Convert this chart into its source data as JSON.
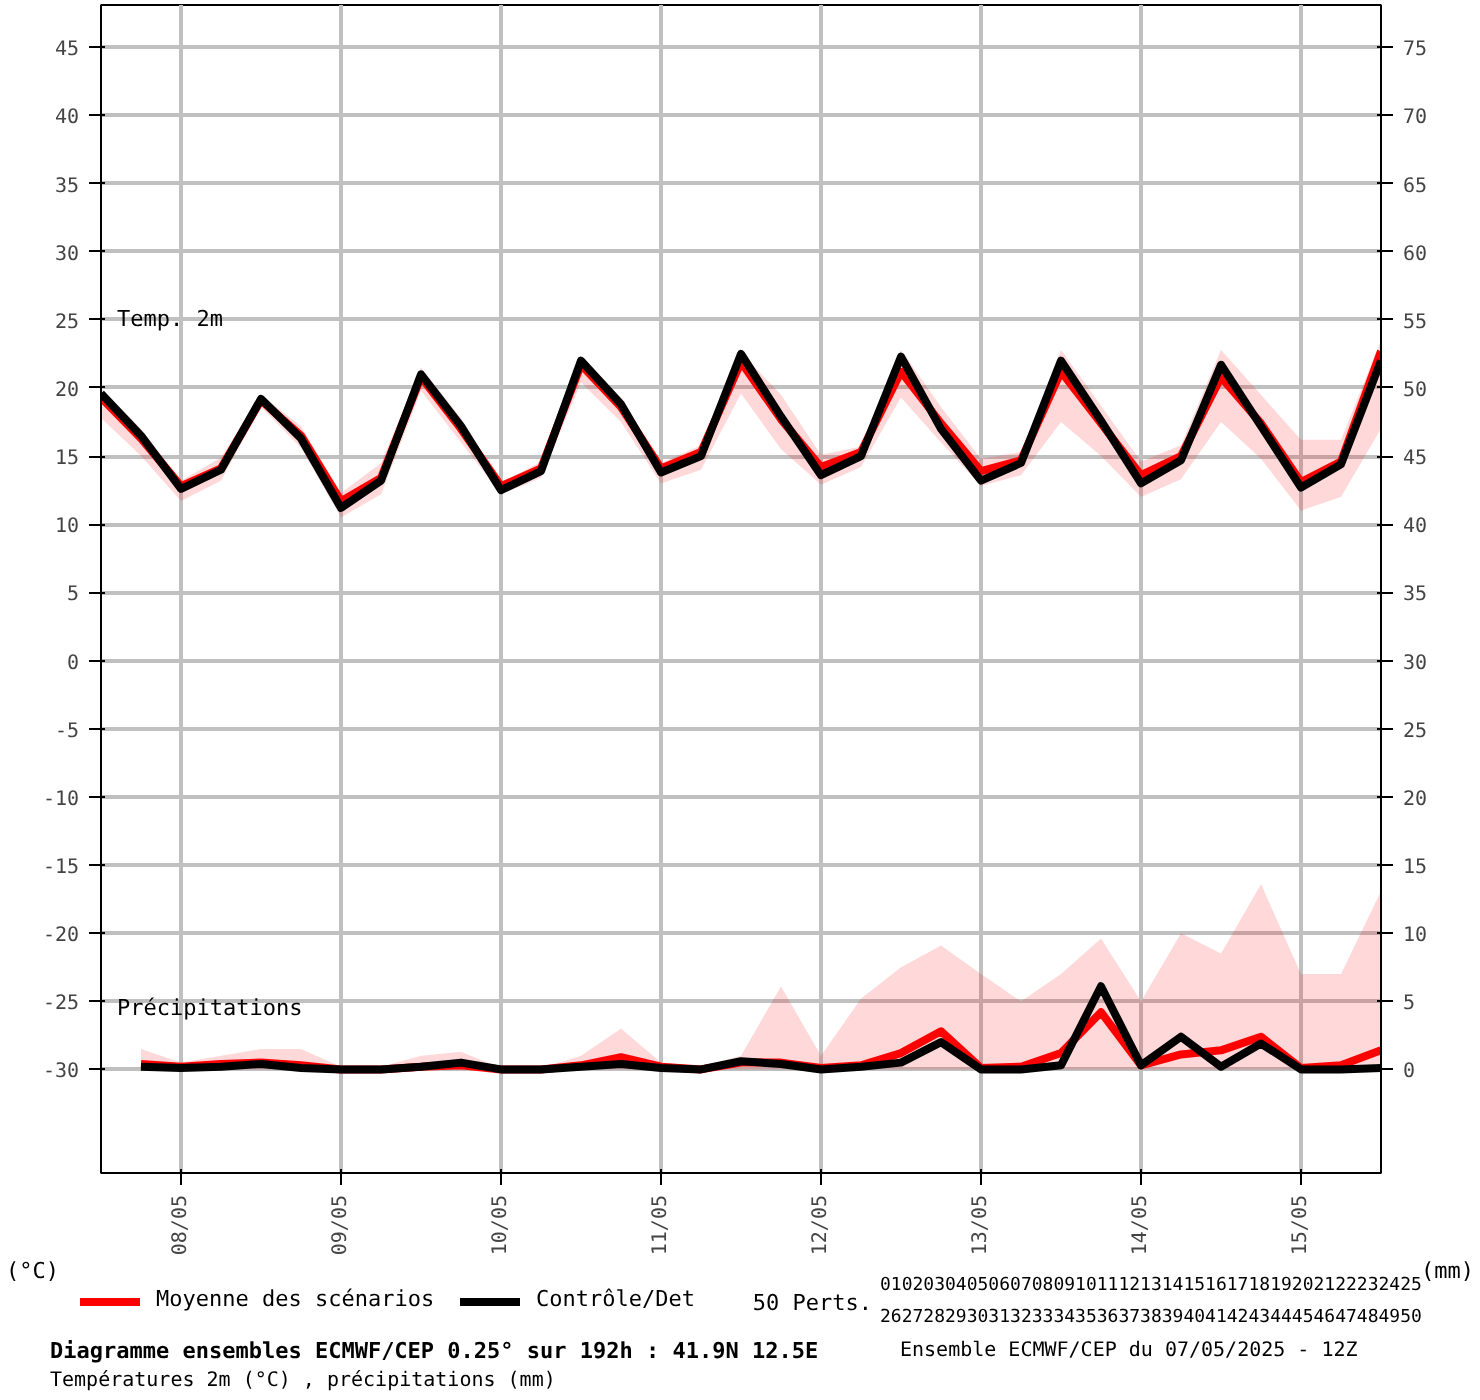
{
  "chart_data": {
    "type": "line",
    "title": "Diagramme ensembles ECMWF/CEP 0.25° sur 192h : 41.9N 12.5E",
    "subtitle": "Températures 2m (°C) , précipitations (mm)",
    "annotations": [
      "Temp. 2m",
      "Précipitations",
      "50 Perts.",
      "01020304050607080910111213141516171819202122232425",
      "26272829303132333435363738394041424344454647484950",
      "Ensemble ECMWF/CEP du 07/05/2025 - 12Z",
      "(°C)",
      "(mm)"
    ],
    "xlim": [
      "2025-05-07T12:00",
      "2025-05-15T12:00"
    ],
    "xticks": [
      {
        "value": "2025-05-08",
        "label": "08/05"
      },
      {
        "value": "2025-05-09",
        "label": "09/05"
      },
      {
        "value": "2025-05-10",
        "label": "10/05"
      },
      {
        "value": "2025-05-11",
        "label": "11/05"
      },
      {
        "value": "2025-05-12",
        "label": "12/05"
      },
      {
        "value": "2025-05-13",
        "label": "13/05"
      },
      {
        "value": "2025-05-14",
        "label": "14/05"
      },
      {
        "value": "2025-05-15",
        "label": "15/05"
      }
    ],
    "ylim": [
      -37.6,
      48.1
    ],
    "yticks": [
      -30,
      -25,
      -20,
      -15,
      -10,
      -5,
      0,
      5,
      10,
      15,
      20,
      25,
      30,
      35,
      40,
      45
    ],
    "y2lim": [
      -7.6,
      78.1
    ],
    "y2ticks": [
      0,
      5,
      10,
      15,
      20,
      25,
      30,
      35,
      40,
      45,
      50,
      55,
      60,
      65,
      70,
      75
    ],
    "grid": true,
    "legend": "bottom",
    "series": [
      {
        "name": "Moyenne des scénarios",
        "color": "#ff0000",
        "x": [
          "2025-05-07T12:00",
          "2025-05-07T18:00",
          "2025-05-08T00:00",
          "2025-05-08T06:00",
          "2025-05-08T12:00",
          "2025-05-08T18:00",
          "2025-05-09T00:00",
          "2025-05-09T06:00",
          "2025-05-09T12:00",
          "2025-05-09T18:00",
          "2025-05-10T00:00",
          "2025-05-10T06:00",
          "2025-05-10T12:00",
          "2025-05-10T18:00",
          "2025-05-11T00:00",
          "2025-05-11T06:00",
          "2025-05-11T12:00",
          "2025-05-11T18:00",
          "2025-05-12T00:00",
          "2025-05-12T06:00",
          "2025-05-12T12:00",
          "2025-05-12T18:00",
          "2025-05-13T00:00",
          "2025-05-13T06:00",
          "2025-05-13T12:00",
          "2025-05-13T18:00",
          "2025-05-14T00:00",
          "2025-05-14T06:00",
          "2025-05-14T12:00",
          "2025-05-14T18:00",
          "2025-05-15T00:00",
          "2025-05-15T06:00",
          "2025-05-15T12:00"
        ],
        "values": [
          19.3,
          16.3,
          12.8,
          14.1,
          19.1,
          16.5,
          11.7,
          13.4,
          20.8,
          17.0,
          12.8,
          14.1,
          21.7,
          18.6,
          14.1,
          15.3,
          21.9,
          17.7,
          14.2,
          15.3,
          21.2,
          17.4,
          13.9,
          14.7,
          21.2,
          17.4,
          13.6,
          15.0,
          20.8,
          17.4,
          13.1,
          14.6,
          22.7
        ],
        "lower": [
          17.8,
          15.0,
          11.7,
          13.2,
          18.6,
          15.6,
          10.5,
          12.2,
          19.8,
          16.0,
          12.2,
          13.4,
          20.4,
          17.5,
          13.0,
          14.0,
          19.6,
          15.5,
          12.9,
          14.2,
          19.3,
          16.0,
          12.8,
          13.6,
          17.5,
          15.0,
          12.0,
          13.3,
          17.5,
          14.8,
          11.0,
          12.0,
          17.0
        ],
        "upper": [
          20.0,
          17.0,
          13.2,
          14.9,
          19.5,
          17.2,
          12.3,
          14.5,
          21.5,
          17.8,
          13.0,
          14.6,
          22.3,
          19.3,
          14.5,
          15.8,
          22.6,
          19.5,
          15.1,
          15.7,
          22.8,
          18.6,
          14.8,
          15.3,
          22.8,
          18.7,
          14.6,
          15.8,
          22.8,
          19.5,
          16.2,
          16.2,
          23.5
        ]
      },
      {
        "name": "Contrôle/Det",
        "color": "#000000",
        "x": [
          "2025-05-07T12:00",
          "2025-05-07T18:00",
          "2025-05-08T00:00",
          "2025-05-08T06:00",
          "2025-05-08T12:00",
          "2025-05-08T18:00",
          "2025-05-09T00:00",
          "2025-05-09T06:00",
          "2025-05-09T12:00",
          "2025-05-09T18:00",
          "2025-05-10T00:00",
          "2025-05-10T06:00",
          "2025-05-10T12:00",
          "2025-05-10T18:00",
          "2025-05-11T00:00",
          "2025-05-11T06:00",
          "2025-05-11T12:00",
          "2025-05-11T18:00",
          "2025-05-12T00:00",
          "2025-05-12T06:00",
          "2025-05-12T12:00",
          "2025-05-12T18:00",
          "2025-05-13T00:00",
          "2025-05-13T06:00",
          "2025-05-13T12:00",
          "2025-05-13T18:00",
          "2025-05-14T00:00",
          "2025-05-14T06:00",
          "2025-05-14T12:00",
          "2025-05-14T18:00",
          "2025-05-15T00:00",
          "2025-05-15T06:00",
          "2025-05-15T12:00"
        ],
        "values": [
          19.6,
          16.5,
          12.6,
          14.0,
          19.2,
          16.3,
          11.2,
          13.2,
          21.0,
          17.2,
          12.5,
          13.9,
          22.0,
          18.8,
          13.8,
          15.0,
          22.5,
          17.9,
          13.6,
          15.0,
          22.3,
          17.0,
          13.2,
          14.5,
          22.0,
          17.6,
          13.0,
          14.7,
          21.7,
          17.2,
          12.7,
          14.4,
          22.0
        ]
      },
      {
        "color": "#ff0000",
        "axis": "y2",
        "x": [
          "2025-05-07T18:00",
          "2025-05-08T00:00",
          "2025-05-08T06:00",
          "2025-05-08T12:00",
          "2025-05-08T18:00",
          "2025-05-09T00:00",
          "2025-05-09T06:00",
          "2025-05-09T12:00",
          "2025-05-09T18:00",
          "2025-05-10T00:00",
          "2025-05-10T06:00",
          "2025-05-10T12:00",
          "2025-05-10T18:00",
          "2025-05-11T00:00",
          "2025-05-11T06:00",
          "2025-05-11T12:00",
          "2025-05-11T18:00",
          "2025-05-12T00:00",
          "2025-05-12T06:00",
          "2025-05-12T12:00",
          "2025-05-12T18:00",
          "2025-05-13T00:00",
          "2025-05-13T06:00",
          "2025-05-13T12:00",
          "2025-05-13T18:00",
          "2025-05-14T00:00",
          "2025-05-14T06:00",
          "2025-05-14T12:00",
          "2025-05-14T18:00",
          "2025-05-15T00:00",
          "2025-05-15T06:00",
          "2025-05-15T12:00"
        ],
        "values": [
          0.4,
          0.2,
          0.4,
          0.5,
          0.3,
          0.0,
          0.0,
          0.2,
          0.3,
          0.0,
          0.0,
          0.3,
          0.9,
          0.2,
          0.0,
          0.5,
          0.5,
          0.1,
          0.3,
          1.2,
          2.8,
          0.1,
          0.2,
          1.2,
          4.2,
          0.3,
          1.1,
          1.4,
          2.4,
          0.1,
          0.3,
          1.4
        ],
        "lower": [
          0,
          0,
          0,
          0,
          0,
          0,
          0,
          0,
          0,
          0,
          0,
          0,
          0,
          0,
          0,
          0,
          0,
          0,
          0,
          0,
          0,
          0,
          0,
          0,
          0,
          0,
          0,
          0,
          0,
          0,
          0,
          0
        ],
        "upper": [
          1.5,
          0.5,
          1.0,
          1.5,
          1.5,
          0.2,
          0.2,
          1.0,
          1.3,
          0.1,
          0.1,
          1.0,
          3.0,
          0.5,
          0.2,
          1.0,
          6.1,
          1.0,
          5.2,
          7.5,
          9.1,
          7.0,
          5.0,
          7.0,
          9.6,
          5.0,
          10.0,
          8.5,
          13.6,
          7.0,
          7.0,
          13.1
        ]
      },
      {
        "color": "#000000",
        "axis": "y2",
        "x": [
          "2025-05-07T18:00",
          "2025-05-08T00:00",
          "2025-05-08T06:00",
          "2025-05-08T12:00",
          "2025-05-08T18:00",
          "2025-05-09T00:00",
          "2025-05-09T06:00",
          "2025-05-09T12:00",
          "2025-05-09T18:00",
          "2025-05-10T00:00",
          "2025-05-10T06:00",
          "2025-05-10T12:00",
          "2025-05-10T18:00",
          "2025-05-11T00:00",
          "2025-05-11T06:00",
          "2025-05-11T12:00",
          "2025-05-11T18:00",
          "2025-05-12T00:00",
          "2025-05-12T06:00",
          "2025-05-12T12:00",
          "2025-05-12T18:00",
          "2025-05-13T00:00",
          "2025-05-13T06:00",
          "2025-05-13T12:00",
          "2025-05-13T18:00",
          "2025-05-14T00:00",
          "2025-05-14T06:00",
          "2025-05-14T12:00",
          "2025-05-14T18:00",
          "2025-05-15T00:00",
          "2025-05-15T06:00",
          "2025-05-15T12:00"
        ],
        "values": [
          0.2,
          0.1,
          0.2,
          0.4,
          0.1,
          0.0,
          0.0,
          0.2,
          0.5,
          0.0,
          0.0,
          0.2,
          0.4,
          0.1,
          0.0,
          0.6,
          0.4,
          0.0,
          0.2,
          0.5,
          2.0,
          0.0,
          0.0,
          0.3,
          6.1,
          0.3,
          2.4,
          0.2,
          1.9,
          0.0,
          0.0,
          0.1
        ]
      }
    ]
  }
}
